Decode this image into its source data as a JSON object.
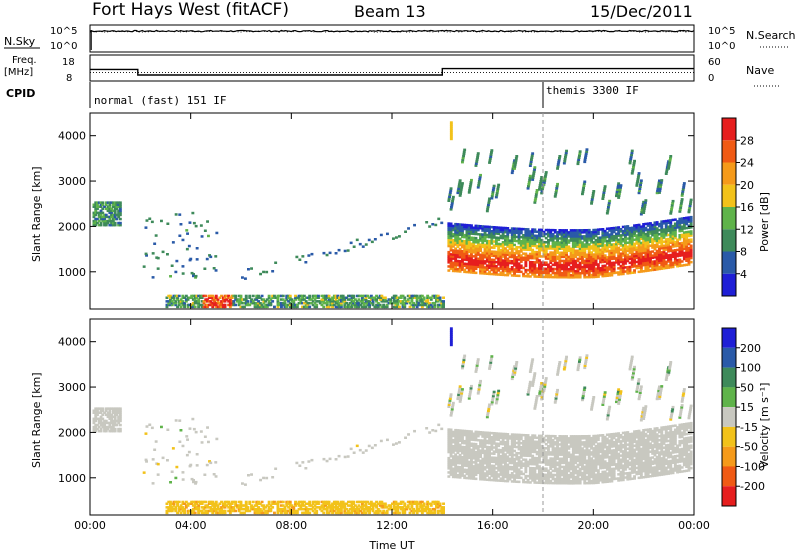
{
  "header": {
    "radar": "Fort Hays West (fitACF)",
    "beam": "Beam 13",
    "date": "15/Dec/2011"
  },
  "labels": {
    "nsky": "N.Sky",
    "nsearch": "N.Search",
    "freq_line1": "Freq.",
    "freq_line2": "[MHz]",
    "nave": "Nave",
    "cpid": "CPID",
    "xlabel": "Time UT",
    "ylabel": "Slant Range [km]",
    "power_label": "Power [dB]",
    "velocity_label": "Velocity [m s⁻¹]",
    "noise_left_ticks": [
      "10^5",
      "10^0"
    ],
    "noise_right_ticks": [
      "10^5",
      "10^0"
    ],
    "freq_left_ticks": [
      "18",
      "8"
    ],
    "freq_right_ticks": [
      "60",
      "0"
    ]
  },
  "cpid_modes": [
    {
      "label": "normal (fast) 151 IF",
      "start_hour": 0
    },
    {
      "label": "themis 3300 IF",
      "start_hour": 18
    }
  ],
  "colors": {
    "power": [
      "#1f1fd6",
      "#2a5aa8",
      "#3e8a5a",
      "#5fb34a",
      "#f2c21a",
      "#f59a1a",
      "#f05a14",
      "#e61e1e"
    ],
    "velocity": [
      "#e61e1e",
      "#f05a14",
      "#f59a1a",
      "#f2c21a",
      "#c8c8c0",
      "#5fb34a",
      "#3e8a5a",
      "#2a5aa8",
      "#1f1fd6"
    ],
    "ground_scatter": "#c8c8c0"
  },
  "chart_data": [
    {
      "type": "line",
      "name": "noise",
      "x_range_hours": [
        0,
        24
      ],
      "series": [
        {
          "name": "N.Sky",
          "style": "solid",
          "level_log10": 4.3
        },
        {
          "name": "N.Search",
          "style": "dotted",
          "level_log10": 4.2
        }
      ]
    },
    {
      "type": "line",
      "name": "frequency",
      "x_range_hours": [
        0,
        24
      ],
      "series": [
        {
          "name": "Freq.",
          "style": "solid",
          "unit": "MHz",
          "points": [
            [
              0,
              14
            ],
            [
              1.9,
              14
            ],
            [
              1.9,
              10.5
            ],
            [
              14.0,
              10.5
            ],
            [
              14.0,
              14.5
            ],
            [
              24,
              14.5
            ]
          ]
        },
        {
          "name": "Nave",
          "style": "dotted",
          "points": [
            [
              0,
              12
            ],
            [
              24,
              12
            ]
          ]
        }
      ]
    },
    {
      "type": "heatmap",
      "name": "power",
      "x_range_hours": [
        0,
        24
      ],
      "xticks": [
        "00:00",
        "04:00",
        "08:00",
        "12:00",
        "16:00",
        "20:00",
        "00:00"
      ],
      "xtick_hours": [
        0,
        4,
        8,
        12,
        16,
        20,
        24
      ],
      "ylim": [
        180,
        4500
      ],
      "yticks": [
        1000,
        2000,
        3000,
        4000
      ],
      "colorbar_ticks": [
        "28",
        "24",
        "20",
        "16",
        "12",
        "8",
        "4"
      ],
      "clim": [
        0,
        30
      ]
    },
    {
      "type": "heatmap",
      "name": "velocity",
      "x_range_hours": [
        0,
        24
      ],
      "xticks": [
        "00:00",
        "04:00",
        "08:00",
        "12:00",
        "16:00",
        "20:00",
        "00:00"
      ],
      "xtick_hours": [
        0,
        4,
        8,
        12,
        16,
        20,
        24
      ],
      "ylim": [
        180,
        4500
      ],
      "yticks": [
        1000,
        2000,
        3000,
        4000
      ],
      "colorbar_ticks": [
        "200",
        "100",
        "50",
        "15",
        "-15",
        "-50",
        "-100",
        "-200"
      ],
      "clim": [
        -250,
        250
      ]
    }
  ]
}
